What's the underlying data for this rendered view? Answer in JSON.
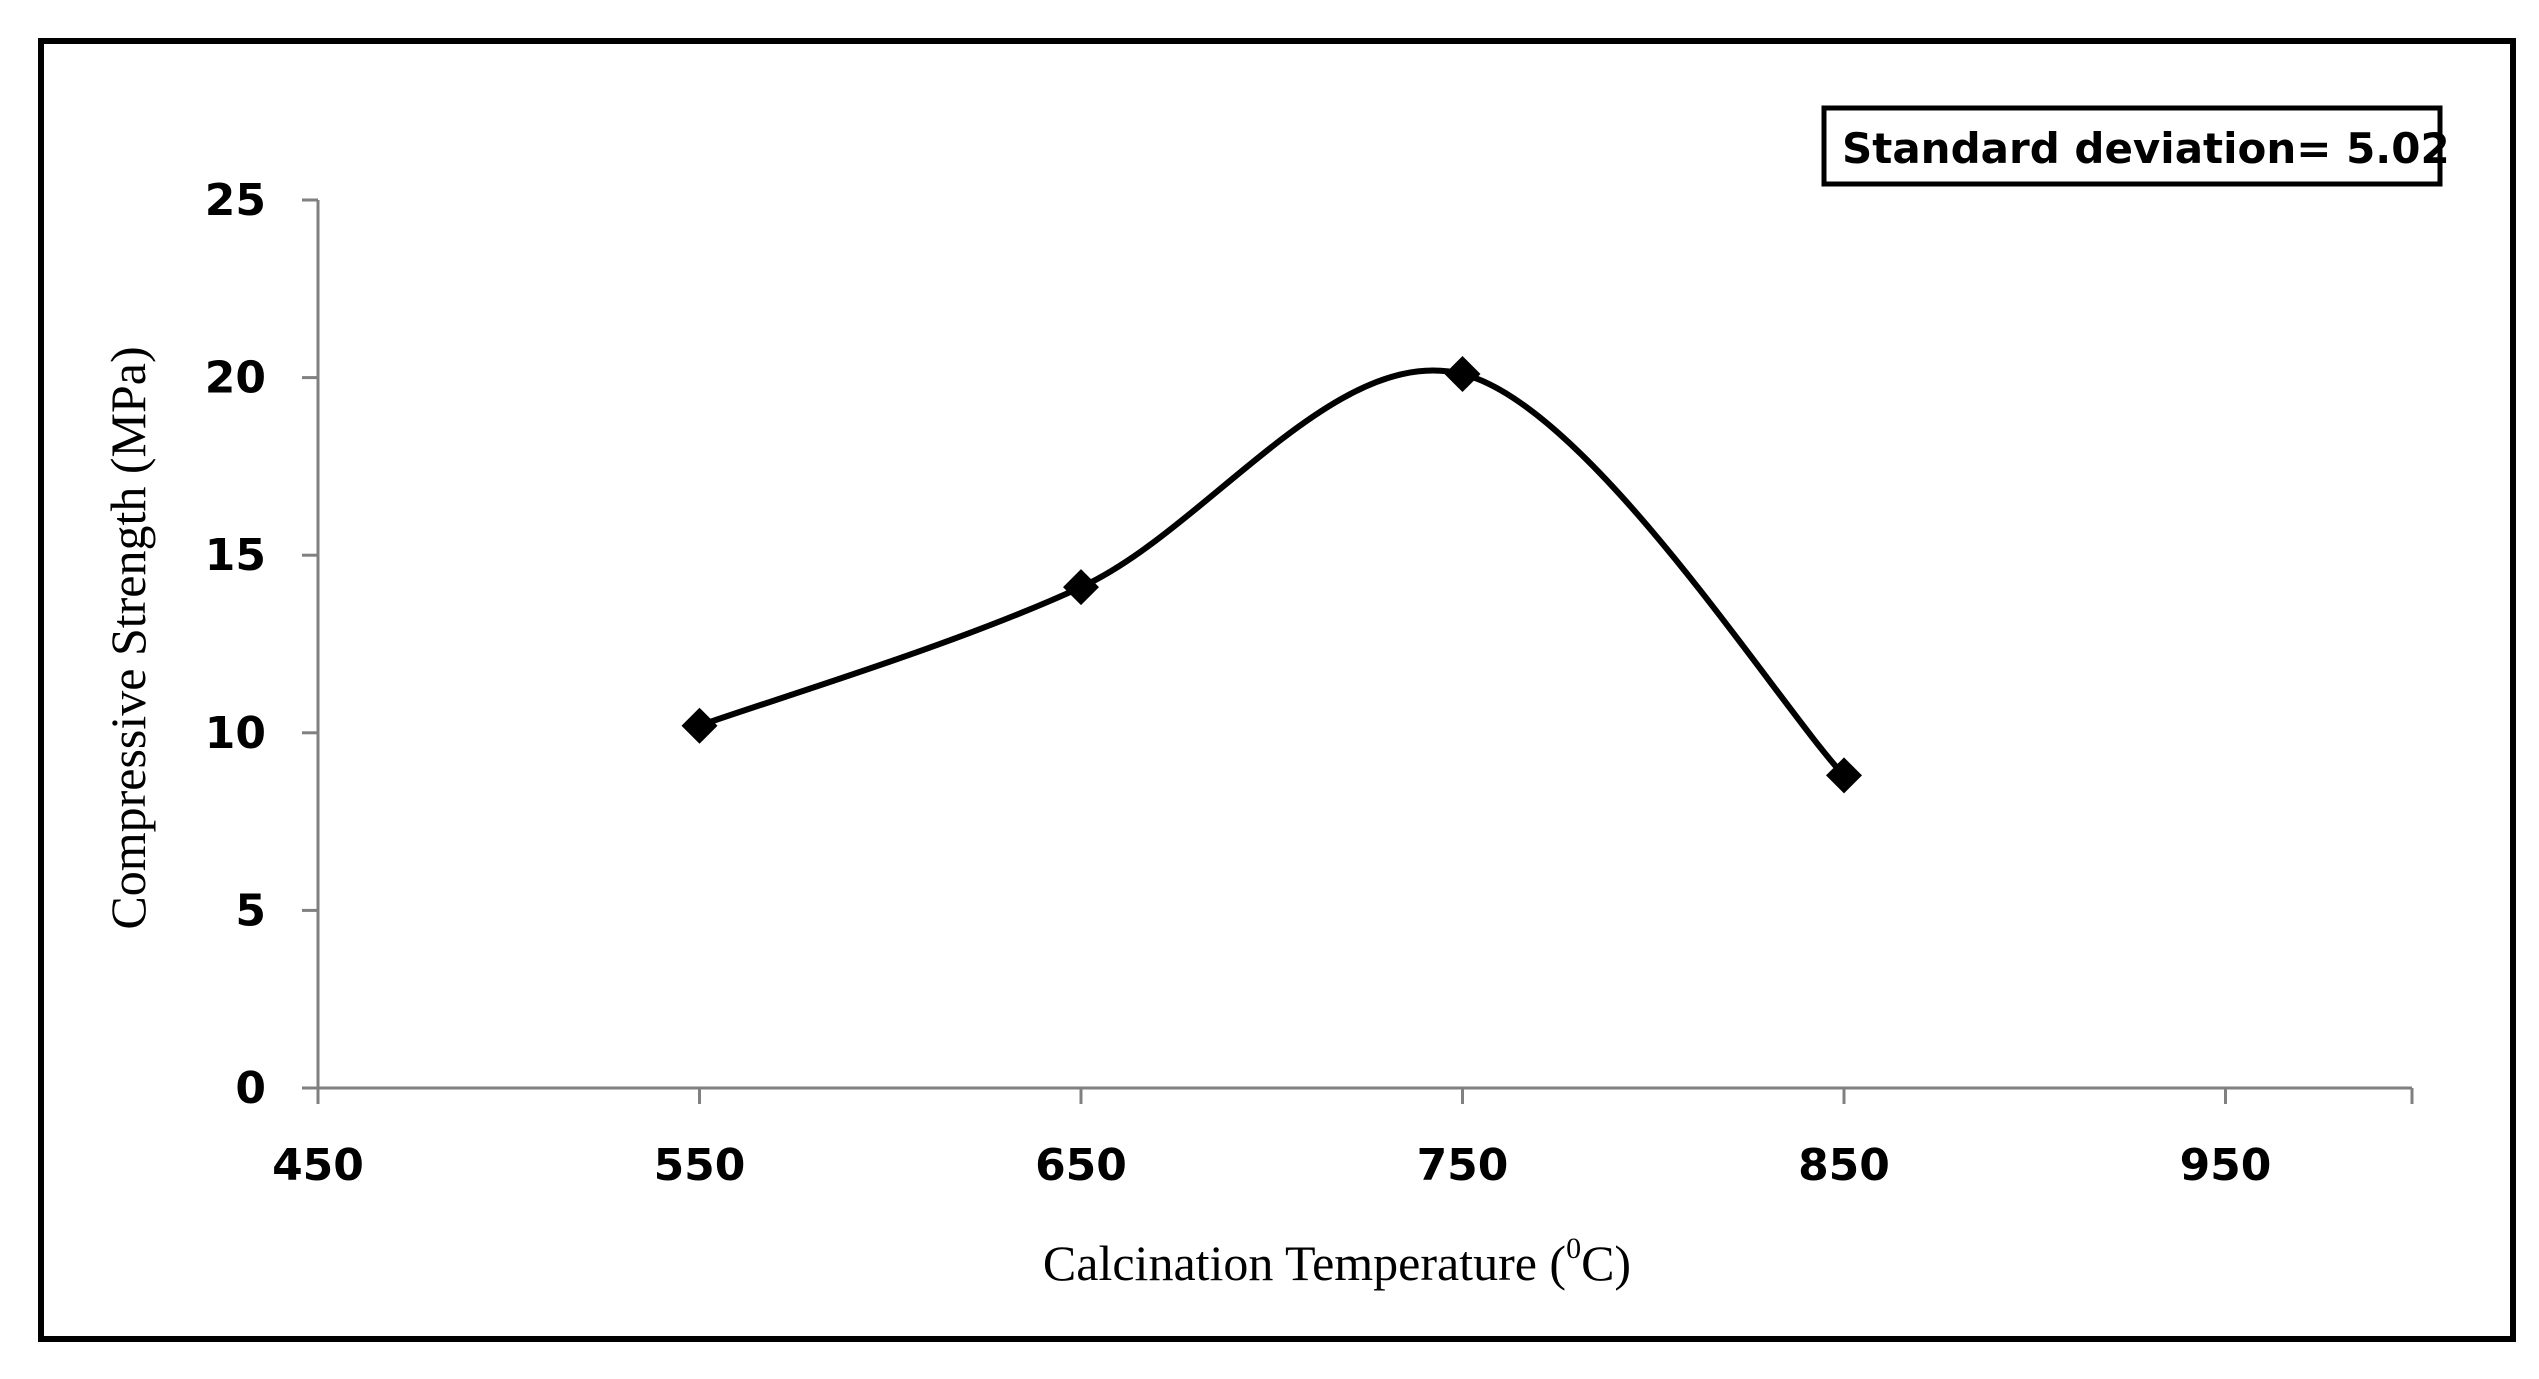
{
  "chart_data": {
    "type": "line",
    "title": "",
    "xlabel": "Calcination Temperature (",
    "xlabel_superscript": "0",
    "xlabel_suffix": "C)",
    "ylabel": "Compressive Strength (MPa)",
    "xlim": [
      450,
      1000
    ],
    "ylim": [
      0,
      25
    ],
    "x_ticks": [
      "450",
      "550",
      "650",
      "750",
      "850",
      "950"
    ],
    "y_ticks": [
      "0",
      "5",
      "10",
      "15",
      "20",
      "25"
    ],
    "series": [
      {
        "name": "Compressive Strength",
        "x": [
          550,
          650,
          750,
          850
        ],
        "values": [
          10.2,
          14.1,
          20.1,
          8.8
        ],
        "marker": "diamond",
        "smoothed": true,
        "color": "#000000"
      }
    ],
    "annotation": "Standard deviation= 5.02",
    "grid": false,
    "legend": "none"
  }
}
